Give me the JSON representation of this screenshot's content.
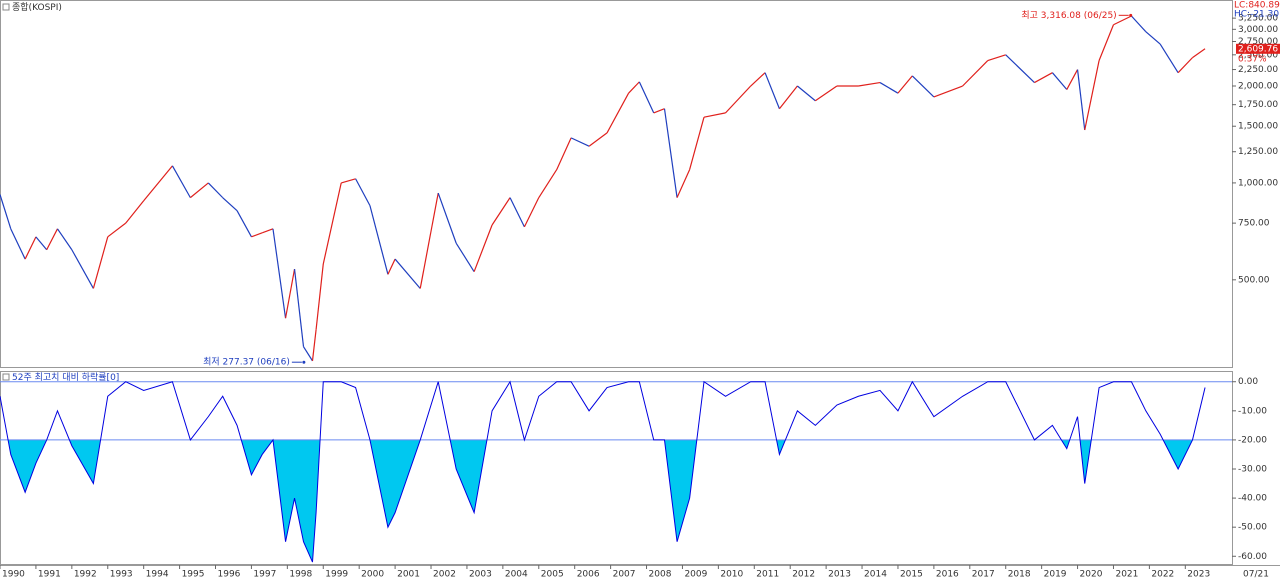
{
  "chart_data": [
    {
      "type": "line",
      "title": "종합(KOSPI)",
      "log": true,
      "up_color": "#e0201c",
      "down_color": "#1f3fbf",
      "x": [
        1990.0,
        1990.3,
        1990.7,
        1991.0,
        1991.3,
        1991.6,
        1992.0,
        1992.6,
        1993.0,
        1993.5,
        1994.0,
        1994.8,
        1995.3,
        1995.8,
        1996.2,
        1996.6,
        1997.0,
        1997.3,
        1997.6,
        1997.95,
        1998.2,
        1998.45,
        1998.7,
        1998.8,
        1999.0,
        1999.5,
        1999.9,
        2000.3,
        2000.8,
        2001.0,
        2001.7,
        2002.2,
        2002.7,
        2003.2,
        2003.7,
        2004.2,
        2004.6,
        2005.0,
        2005.5,
        2005.9,
        2006.4,
        2006.9,
        2007.5,
        2007.8,
        2008.2,
        2008.5,
        2008.85,
        2009.2,
        2009.6,
        2010.2,
        2010.9,
        2011.3,
        2011.7,
        2012.2,
        2012.7,
        2013.3,
        2013.9,
        2014.5,
        2015.0,
        2015.4,
        2016.0,
        2016.8,
        2017.5,
        2018.0,
        2018.8,
        2019.3,
        2019.7,
        2020.0,
        2020.2,
        2020.6,
        2021.0,
        2021.5,
        2021.9,
        2022.3,
        2022.8,
        2023.2,
        2023.55
      ],
      "series": [
        {
          "name": "종합(KOSPI)",
          "values": [
            920,
            720,
            580,
            680,
            620,
            720,
            620,
            470,
            680,
            750,
            880,
            1130,
            900,
            1000,
            900,
            820,
            680,
            700,
            720,
            380,
            540,
            310,
            280,
            350,
            560,
            1000,
            1030,
            850,
            520,
            580,
            470,
            930,
            650,
            530,
            740,
            900,
            730,
            900,
            1100,
            1380,
            1300,
            1430,
            1900,
            2060,
            1650,
            1700,
            900,
            1100,
            1600,
            1650,
            2000,
            2200,
            1700,
            2000,
            1800,
            2000,
            2000,
            2050,
            1900,
            2150,
            1850,
            2000,
            2400,
            2500,
            2050,
            2200,
            1950,
            2250,
            1460,
            2400,
            3100,
            3300,
            2950,
            2700,
            2200,
            2450,
            2610
          ]
        }
      ],
      "xlim": [
        1990,
        2024.3
      ],
      "ylim": [
        268,
        3700
      ],
      "yticks": [
        {
          "value": 500,
          "label": "500.00"
        },
        {
          "value": 750,
          "label": "750.00"
        },
        {
          "value": 1000,
          "label": "1,000.00"
        },
        {
          "value": 1250,
          "label": "1,250.00"
        },
        {
          "value": 1500,
          "label": "1,500.00"
        },
        {
          "value": 1750,
          "label": "1,750.00"
        },
        {
          "value": 2000,
          "label": "2,000.00"
        },
        {
          "value": 2250,
          "label": "2,250.00"
        },
        {
          "value": 2500,
          "label": "2,500.00"
        },
        {
          "value": 2750,
          "label": "2,750.00"
        },
        {
          "value": 3000,
          "label": "3,000.00"
        },
        {
          "value": 3250,
          "label": "3,250.00"
        }
      ],
      "annotations": [
        {
          "text": "최고 3,316.08 (06/25)",
          "x": 2021.48,
          "value": 3316.08,
          "color": "#e0201c"
        },
        {
          "text": "최저 277.37 (06/16)",
          "x": 1998.46,
          "value": 277.37,
          "color": "#1f3fbf"
        }
      ],
      "last": {
        "value": 2609.76,
        "label": "2,609.76"
      },
      "change": "0.37%",
      "lc": "LC:840.89",
      "hc": "HC:-21.30"
    },
    {
      "type": "area-line",
      "title": "52주 최고치 대비 하락률[0]",
      "color": "#0000e0",
      "fill": "#00c8f0",
      "ref_color": "#6a8af0",
      "x": [
        1990.0,
        1990.3,
        1990.7,
        1991.0,
        1991.3,
        1991.6,
        1992.0,
        1992.6,
        1993.0,
        1993.5,
        1994.0,
        1994.8,
        1995.3,
        1995.8,
        1996.2,
        1996.6,
        1997.0,
        1997.3,
        1997.6,
        1997.95,
        1998.2,
        1998.45,
        1998.7,
        1998.8,
        1999.0,
        1999.5,
        1999.9,
        2000.3,
        2000.8,
        2001.0,
        2001.7,
        2002.2,
        2002.7,
        2003.2,
        2003.7,
        2004.2,
        2004.6,
        2005.0,
        2005.5,
        2005.9,
        2006.4,
        2006.9,
        2007.5,
        2007.8,
        2008.2,
        2008.5,
        2008.85,
        2009.2,
        2009.6,
        2010.2,
        2010.9,
        2011.3,
        2011.7,
        2012.2,
        2012.7,
        2013.3,
        2013.9,
        2014.5,
        2015.0,
        2015.4,
        2016.0,
        2016.8,
        2017.5,
        2018.0,
        2018.8,
        2019.3,
        2019.7,
        2020.0,
        2020.2,
        2020.6,
        2021.0,
        2021.5,
        2021.9,
        2022.3,
        2022.8,
        2023.2,
        2023.55
      ],
      "values": [
        -5,
        -25,
        -38,
        -28,
        -20,
        -10,
        -22,
        -35,
        -5,
        0,
        -3,
        0,
        -20,
        -12,
        -5,
        -15,
        -32,
        -25,
        -20,
        -55,
        -40,
        -55,
        -62,
        -45,
        0,
        0,
        -2,
        -20,
        -50,
        -45,
        -20,
        0,
        -30,
        -45,
        -10,
        0,
        -20,
        -5,
        0,
        0,
        -10,
        -2,
        0,
        0,
        -20,
        -20,
        -55,
        -40,
        0,
        -5,
        0,
        0,
        -25,
        -10,
        -15,
        -8,
        -5,
        -3,
        -10,
        0,
        -12,
        -5,
        0,
        0,
        -20,
        -15,
        -23,
        -12,
        -35,
        -2,
        0,
        0,
        -10,
        -18,
        -30,
        -20,
        -2
      ],
      "reference_lines": [
        0,
        -20
      ],
      "threshold": -20,
      "xlim": [
        1990,
        2024.3
      ],
      "ylim": [
        -63,
        3
      ],
      "yticks": [
        {
          "value": 0,
          "label": "0.00"
        },
        {
          "value": -10,
          "label": "-10.00"
        },
        {
          "value": -20,
          "label": "-20.00"
        },
        {
          "value": -30,
          "label": "-30.00"
        },
        {
          "value": -40,
          "label": "-40.00"
        },
        {
          "value": -50,
          "label": "-50.00"
        },
        {
          "value": -60,
          "label": "-60.00"
        }
      ],
      "xticks": [
        1990,
        1991,
        1992,
        1993,
        1994,
        1995,
        1996,
        1997,
        1998,
        1999,
        2000,
        2001,
        2002,
        2003,
        2004,
        2005,
        2006,
        2007,
        2008,
        2009,
        2010,
        2011,
        2012,
        2013,
        2014,
        2015,
        2016,
        2017,
        2018,
        2019,
        2020,
        2021,
        2022,
        2023
      ],
      "date_label": "07/21"
    }
  ]
}
